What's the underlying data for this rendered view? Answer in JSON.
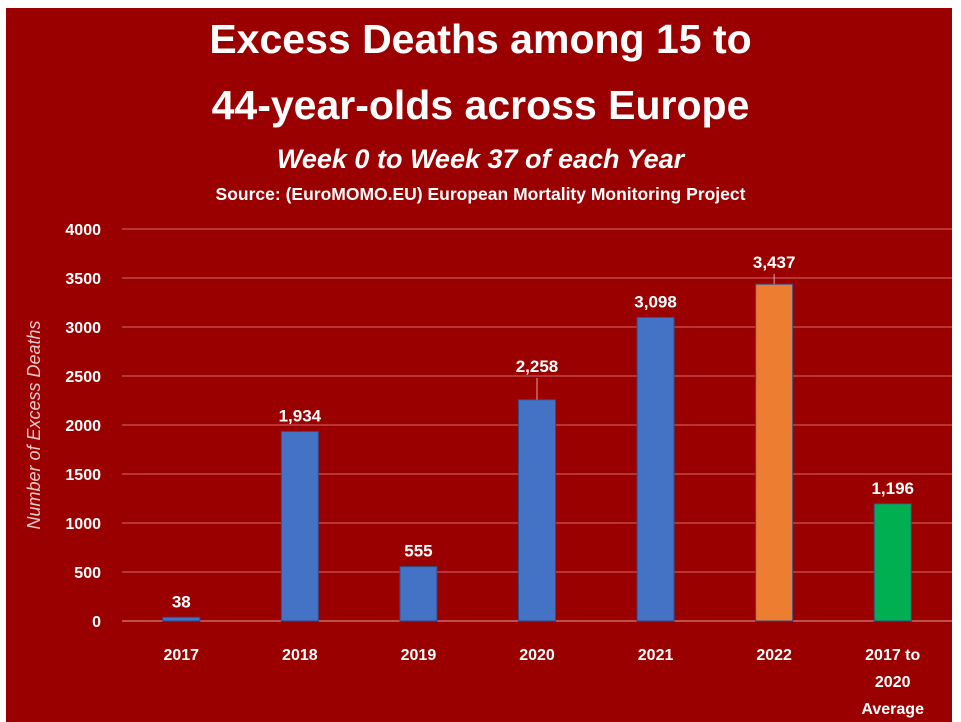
{
  "chart_data": {
    "type": "bar",
    "title": "Excess Deaths among 15 to 44-year-olds across Europe",
    "title_lines": [
      "Excess Deaths among 15 to",
      "44-year-olds across Europe"
    ],
    "subtitle": "Week 0 to Week 37 of each Year",
    "source": "Source: (EuroMOMO.EU) European Mortality Monitoring Project",
    "ylabel": "Number of Excess Deaths",
    "xlabel": "",
    "ylim": [
      0,
      4000
    ],
    "yticks": [
      "0",
      "500",
      "1000",
      "1500",
      "2000",
      "2500",
      "3000",
      "3500",
      "4000"
    ],
    "grid": true,
    "categories": [
      "2017",
      "2018",
      "2019",
      "2020",
      "2021",
      "2022",
      "2017 to 2020 Average"
    ],
    "category_lines": [
      [
        "2017"
      ],
      [
        "2018"
      ],
      [
        "2019"
      ],
      [
        "2020"
      ],
      [
        "2021"
      ],
      [
        "2022"
      ],
      [
        "2017 to",
        "2020",
        "Average"
      ]
    ],
    "values": [
      38,
      1934,
      555,
      2258,
      3098,
      3437,
      1196
    ],
    "value_labels": [
      "38",
      "1,934",
      "555",
      "2,258",
      "3,098",
      "3,437",
      "1,196"
    ],
    "colors": [
      "#4472c4",
      "#4472c4",
      "#4472c4",
      "#4472c4",
      "#4472c4",
      "#ed7d31",
      "#00b050"
    ]
  },
  "colors": {
    "background": "#9b0000",
    "text": "#ffffff"
  }
}
